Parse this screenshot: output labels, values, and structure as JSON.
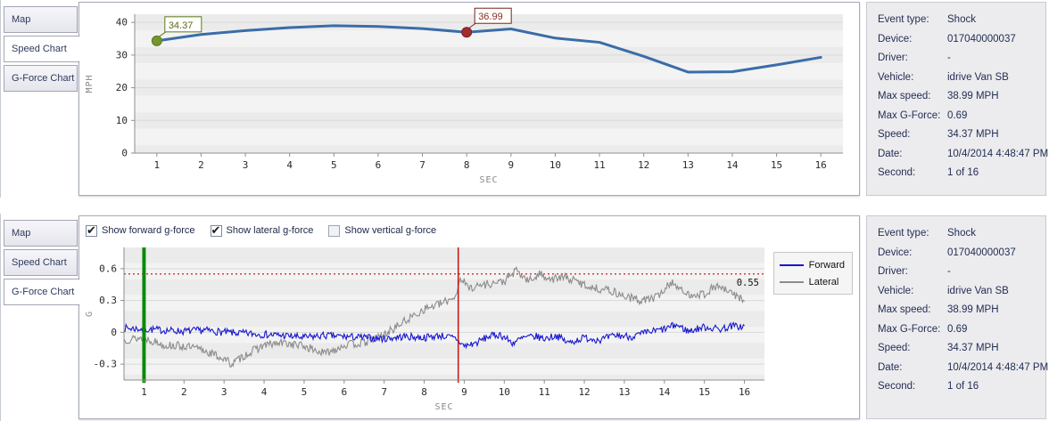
{
  "tabs": [
    "Map",
    "Speed Chart",
    "G-Force Chart"
  ],
  "panels": {
    "top": {
      "active_tab": "Speed Chart"
    },
    "bottom": {
      "active_tab": "G-Force Chart"
    }
  },
  "checkboxes": [
    {
      "label": "Show forward g-force",
      "checked": true
    },
    {
      "label": "Show lateral g-force",
      "checked": true
    },
    {
      "label": "Show vertical g-force",
      "checked": false
    }
  ],
  "legend": [
    {
      "name": "Forward",
      "color": "#1717cf"
    },
    {
      "name": "Lateral",
      "color": "#8c8c8c"
    }
  ],
  "info": {
    "rows": [
      {
        "label": "Event type:",
        "value": "Shock"
      },
      {
        "label": "Device:",
        "value": "017040000037"
      },
      {
        "label": "Driver:",
        "value": "-"
      },
      {
        "label": "Vehicle:",
        "value": "idrive Van SB"
      },
      {
        "label": "Max speed:",
        "value": "38.99 MPH"
      },
      {
        "label": "Max G-Force:",
        "value": "0.69"
      },
      {
        "label": "Speed:",
        "value": "34.37 MPH"
      },
      {
        "label": "Date:",
        "value": "10/4/2014 4:48:47 PM"
      },
      {
        "label": "Second:",
        "value": "1 of 16"
      }
    ]
  },
  "chart_data": [
    {
      "id": "speed",
      "type": "line",
      "title": "",
      "xlabel": "SEC",
      "ylabel": "MPH",
      "x": [
        1,
        2,
        3,
        4,
        5,
        6,
        7,
        8,
        9,
        10,
        11,
        12,
        13,
        14,
        15,
        16
      ],
      "values": [
        34.37,
        36.3,
        37.5,
        38.4,
        38.99,
        38.75,
        38.1,
        36.99,
        38.0,
        35.2,
        33.9,
        29.6,
        24.8,
        24.9,
        27.0,
        29.3
      ],
      "xlim": [
        0.5,
        16.5
      ],
      "ylim": [
        0,
        42.5
      ],
      "yticks": [
        0,
        10,
        20,
        30,
        40
      ],
      "xticks": [
        1,
        2,
        3,
        4,
        5,
        6,
        7,
        8,
        9,
        10,
        11,
        12,
        13,
        14,
        15,
        16
      ],
      "grid": "horizontal",
      "line_color": "#3a6da8",
      "markers": [
        {
          "x": 1,
          "y": 34.37,
          "label": "34.37",
          "fill": "#76962a",
          "stroke": "#5c7a1c",
          "text_color": "#5a6a1a"
        },
        {
          "x": 8,
          "y": 36.99,
          "label": "36.99",
          "fill": "#a22c2e",
          "stroke": "#7c2022",
          "text_color": "#8b2a2a"
        }
      ]
    },
    {
      "id": "gforce",
      "type": "line",
      "title": "",
      "xlabel": "SEC",
      "ylabel": "G",
      "xlim": [
        0.5,
        16.5
      ],
      "ylim": [
        -0.45,
        0.8
      ],
      "yticks": [
        -0.3,
        0,
        0.3,
        0.6
      ],
      "xticks": [
        1,
        2,
        3,
        4,
        5,
        6,
        7,
        8,
        9,
        10,
        11,
        12,
        13,
        14,
        15,
        16
      ],
      "grid": "horizontal",
      "legend_position": "right",
      "threshold": {
        "value": 0.55,
        "label": "0.55",
        "color": "#cc0000"
      },
      "vlines": [
        {
          "x": 1,
          "color": "#0a8a0a",
          "width": 4
        },
        {
          "x": 8.85,
          "color": "#cc1111",
          "width": 1.5
        }
      ],
      "sample_step": 0.025,
      "series": [
        {
          "name": "Forward",
          "color": "#1717cf",
          "noise": 0.035,
          "seed": 7,
          "envelope": [
            [
              0.5,
              0.04
            ],
            [
              1,
              0.03
            ],
            [
              1.5,
              0.02
            ],
            [
              2,
              0.01
            ],
            [
              2.5,
              0.02
            ],
            [
              3,
              0.0
            ],
            [
              3.5,
              -0.01
            ],
            [
              4,
              -0.02
            ],
            [
              4.5,
              -0.03
            ],
            [
              5,
              -0.05
            ],
            [
              5.5,
              -0.03
            ],
            [
              6,
              -0.04
            ],
            [
              6.5,
              -0.05
            ],
            [
              7,
              -0.06
            ],
            [
              7.5,
              -0.04
            ],
            [
              8,
              -0.05
            ],
            [
              8.4,
              -0.03
            ],
            [
              8.8,
              -0.06
            ],
            [
              9,
              -0.13
            ],
            [
              9.3,
              -0.1
            ],
            [
              9.6,
              -0.04
            ],
            [
              9.9,
              -0.02
            ],
            [
              10.2,
              -0.1
            ],
            [
              10.5,
              -0.05
            ],
            [
              10.8,
              -0.04
            ],
            [
              11,
              -0.06
            ],
            [
              11.3,
              -0.03
            ],
            [
              11.6,
              -0.1
            ],
            [
              12,
              -0.05
            ],
            [
              12.4,
              -0.07
            ],
            [
              12.8,
              -0.03
            ],
            [
              13.2,
              -0.04
            ],
            [
              13.6,
              0.0
            ],
            [
              14,
              0.03
            ],
            [
              14.3,
              0.07
            ],
            [
              14.6,
              0.01
            ],
            [
              15,
              0.05
            ],
            [
              15.4,
              0.03
            ],
            [
              15.7,
              0.06
            ],
            [
              16,
              0.05
            ]
          ]
        },
        {
          "name": "Lateral",
          "color": "#8c8c8c",
          "noise": 0.04,
          "seed": 13,
          "envelope": [
            [
              0.5,
              -0.07
            ],
            [
              1,
              -0.05
            ],
            [
              1.5,
              -0.12
            ],
            [
              2,
              -0.13
            ],
            [
              2.5,
              -0.17
            ],
            [
              3,
              -0.25
            ],
            [
              3.2,
              -0.3
            ],
            [
              3.5,
              -0.22
            ],
            [
              4,
              -0.12
            ],
            [
              4.5,
              -0.1
            ],
            [
              5,
              -0.13
            ],
            [
              5.5,
              -0.2
            ],
            [
              6,
              -0.12
            ],
            [
              6.5,
              -0.1
            ],
            [
              7,
              -0.02
            ],
            [
              7.5,
              0.1
            ],
            [
              8,
              0.22
            ],
            [
              8.5,
              0.28
            ],
            [
              8.8,
              0.35
            ],
            [
              8.9,
              0.52
            ],
            [
              9.1,
              0.42
            ],
            [
              9.5,
              0.45
            ],
            [
              10,
              0.48
            ],
            [
              10.3,
              0.58
            ],
            [
              10.6,
              0.48
            ],
            [
              10.9,
              0.55
            ],
            [
              11.2,
              0.5
            ],
            [
              11.5,
              0.52
            ],
            [
              11.8,
              0.48
            ],
            [
              12.2,
              0.42
            ],
            [
              12.6,
              0.4
            ],
            [
              13,
              0.34
            ],
            [
              13.4,
              0.3
            ],
            [
              13.8,
              0.33
            ],
            [
              14.2,
              0.48
            ],
            [
              14.5,
              0.36
            ],
            [
              15,
              0.36
            ],
            [
              15.3,
              0.44
            ],
            [
              15.7,
              0.36
            ],
            [
              16,
              0.31
            ]
          ]
        }
      ]
    }
  ],
  "colors": {
    "plot_band_dark": "#ebebeb",
    "plot_band_light": "#f3f3f3",
    "grid": "#d9d9d9",
    "axis": "#8f8f8f",
    "tick_text": "#2a2a2a",
    "axis_label": "#888888"
  }
}
